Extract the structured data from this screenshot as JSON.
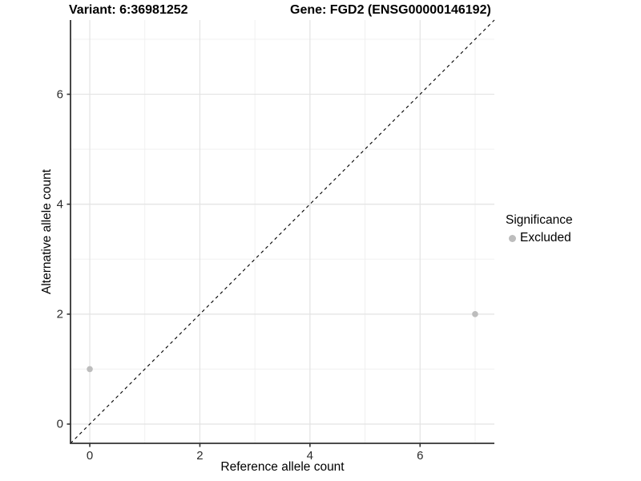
{
  "titles": {
    "variant": "Variant: 6:36981252",
    "gene": "Gene: FGD2 (ENSG00000146192)"
  },
  "axes": {
    "x_label": "Reference allele count",
    "y_label": "Alternative allele count"
  },
  "legend": {
    "title": "Significance",
    "items": [
      {
        "label": "Excluded",
        "marker": "dot",
        "color": "#bdbdbd"
      }
    ]
  },
  "colors": {
    "point": "#bdbdbd",
    "axis_line": "#333333",
    "tick_mark": "#333333",
    "grid_major": "#e3e3e3",
    "grid_minor": "#f0f0f0",
    "reference_line": "#000000",
    "background": "#ffffff"
  },
  "chart_data": {
    "type": "scatter",
    "title": "Variant: 6:36981252 / Gene: FGD2 (ENSG00000146192)",
    "xlabel": "Reference allele count",
    "ylabel": "Alternative allele count",
    "xlim": [
      -0.35,
      7.35
    ],
    "ylim": [
      -0.35,
      7.35
    ],
    "x_ticks": [
      0,
      2,
      4,
      6
    ],
    "y_ticks": [
      0,
      2,
      4,
      6
    ],
    "gridlines": [
      0,
      1,
      2,
      3,
      4,
      5,
      6,
      7
    ],
    "grid": true,
    "legend_position": "right",
    "series": [
      {
        "name": "Excluded",
        "points": [
          {
            "x": 0,
            "y": 1
          },
          {
            "x": 7,
            "y": 2
          }
        ]
      }
    ],
    "reference_line": {
      "type": "identity",
      "style": "dashed"
    }
  }
}
